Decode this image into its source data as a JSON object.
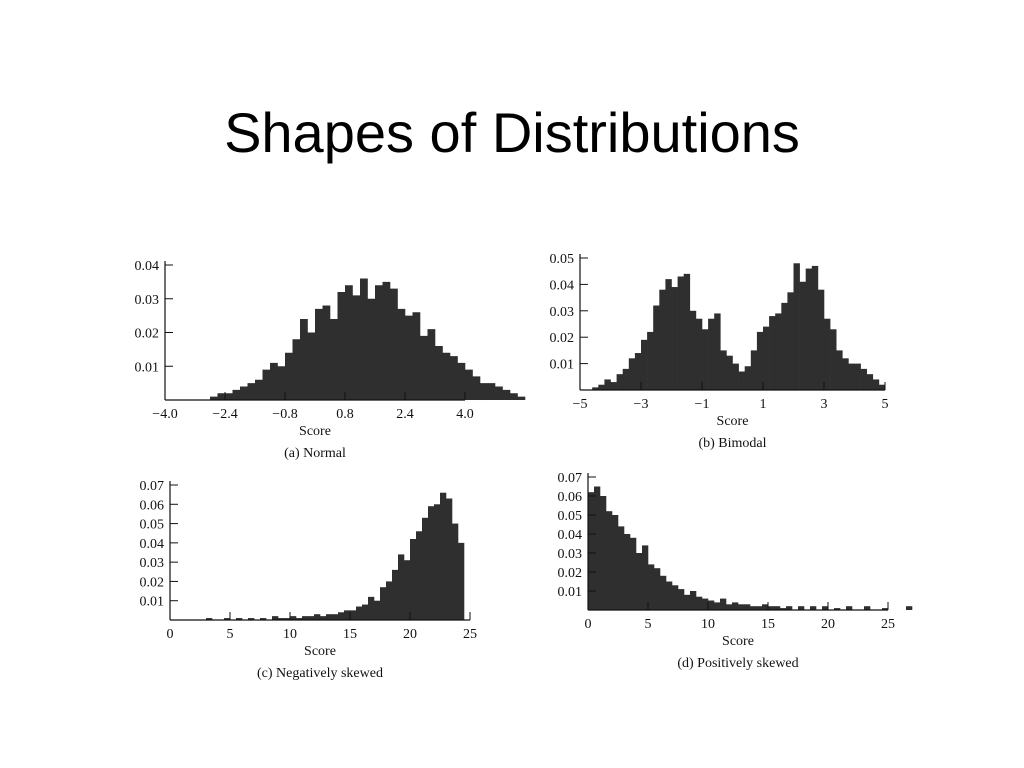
{
  "slide": {
    "title": "Shapes of Distributions"
  },
  "colors": {
    "bar": "#2f2f2f",
    "axis": "#111111",
    "text": "#111111"
  },
  "chart_data": [
    {
      "type": "bar",
      "caption": "(a) Normal",
      "xlabel": "Score",
      "ylabel": "",
      "xlim": [
        -4.0,
        4.0
      ],
      "ylim": [
        0,
        0.04
      ],
      "x_ticks": [
        "−4.0",
        "−2.4",
        "−0.8",
        "0.8",
        "2.4",
        "4.0"
      ],
      "x_tick_values": [
        -4.0,
        -2.4,
        -0.8,
        0.8,
        2.4,
        4.0
      ],
      "y_ticks": [
        "0.01",
        "0.02",
        "0.03",
        "0.04"
      ],
      "y_tick_values": [
        0.01,
        0.02,
        0.03,
        0.04
      ],
      "bin_start": -2.8,
      "bin_width": 0.2,
      "values": [
        0.001,
        0.002,
        0.002,
        0.003,
        0.004,
        0.005,
        0.006,
        0.009,
        0.011,
        0.01,
        0.014,
        0.018,
        0.024,
        0.02,
        0.027,
        0.028,
        0.024,
        0.032,
        0.034,
        0.031,
        0.036,
        0.03,
        0.034,
        0.035,
        0.033,
        0.027,
        0.025,
        0.026,
        0.019,
        0.021,
        0.016,
        0.014,
        0.013,
        0.011,
        0.009,
        0.007,
        0.005,
        0.005,
        0.004,
        0.003,
        0.002,
        0.001
      ]
    },
    {
      "type": "bar",
      "caption": "(b) Bimodal",
      "xlabel": "Score",
      "ylabel": "",
      "xlim": [
        -5,
        5
      ],
      "ylim": [
        0,
        0.05
      ],
      "x_ticks": [
        "−5",
        "−3",
        "−1",
        "1",
        "3",
        "5"
      ],
      "x_tick_values": [
        -5,
        -3,
        -1,
        1,
        3,
        5
      ],
      "y_ticks": [
        "0.01",
        "0.02",
        "0.03",
        "0.04",
        "0.05"
      ],
      "y_tick_values": [
        0.01,
        0.02,
        0.03,
        0.04,
        0.05
      ],
      "bin_start": -4.6,
      "bin_width": 0.2,
      "values": [
        0.001,
        0.002,
        0.004,
        0.003,
        0.006,
        0.008,
        0.012,
        0.014,
        0.019,
        0.022,
        0.032,
        0.038,
        0.042,
        0.039,
        0.043,
        0.044,
        0.03,
        0.027,
        0.023,
        0.027,
        0.029,
        0.015,
        0.013,
        0.01,
        0.007,
        0.009,
        0.015,
        0.022,
        0.024,
        0.028,
        0.029,
        0.033,
        0.037,
        0.048,
        0.041,
        0.046,
        0.047,
        0.038,
        0.027,
        0.023,
        0.015,
        0.012,
        0.01,
        0.01,
        0.008,
        0.006,
        0.004,
        0.002
      ]
    },
    {
      "type": "bar",
      "caption": "(c) Negatively skewed",
      "xlabel": "Score",
      "ylabel": "",
      "xlim": [
        0,
        25
      ],
      "ylim": [
        0,
        0.07
      ],
      "x_ticks": [
        "0",
        "5",
        "10",
        "15",
        "20",
        "25"
      ],
      "x_tick_values": [
        0,
        5,
        10,
        15,
        20,
        25
      ],
      "y_ticks": [
        "0.01",
        "0.02",
        "0.03",
        "0.04",
        "0.05",
        "0.06",
        "0.07"
      ],
      "y_tick_values": [
        0.01,
        0.02,
        0.03,
        0.04,
        0.05,
        0.06,
        0.07
      ],
      "bin_start": 3.0,
      "bin_width": 0.5,
      "values": [
        0.001,
        0,
        0,
        0.001,
        0,
        0.001,
        0,
        0.001,
        0,
        0.001,
        0,
        0.002,
        0.001,
        0.001,
        0.002,
        0.001,
        0.002,
        0.002,
        0.003,
        0.002,
        0.003,
        0.003,
        0.004,
        0.005,
        0.005,
        0.007,
        0.008,
        0.012,
        0.01,
        0.017,
        0.02,
        0.026,
        0.034,
        0.031,
        0.042,
        0.046,
        0.053,
        0.059,
        0.06,
        0.066,
        0.063,
        0.05,
        0.04
      ]
    },
    {
      "type": "bar",
      "caption": "(d) Positively skewed",
      "xlabel": "Score",
      "ylabel": "",
      "xlim": [
        0,
        25
      ],
      "ylim": [
        0,
        0.07
      ],
      "x_ticks": [
        "0",
        "5",
        "10",
        "15",
        "20",
        "25"
      ],
      "x_tick_values": [
        0,
        5,
        10,
        15,
        20,
        25
      ],
      "y_ticks": [
        "0.01",
        "0.02",
        "0.03",
        "0.04",
        "0.05",
        "0.06",
        "0.07"
      ],
      "y_tick_values": [
        0.01,
        0.02,
        0.03,
        0.04,
        0.05,
        0.06,
        0.07
      ],
      "bin_start": 0.0,
      "bin_width": 0.5,
      "values": [
        0.062,
        0.065,
        0.06,
        0.052,
        0.05,
        0.044,
        0.04,
        0.038,
        0.03,
        0.034,
        0.024,
        0.022,
        0.018,
        0.015,
        0.013,
        0.011,
        0.008,
        0.01,
        0.007,
        0.006,
        0.005,
        0.004,
        0.006,
        0.003,
        0.004,
        0.003,
        0.003,
        0.002,
        0.002,
        0.003,
        0.002,
        0.002,
        0.001,
        0.002,
        0,
        0.002,
        0,
        0.002,
        0,
        0.002,
        0,
        0.001,
        0,
        0.002,
        0,
        0,
        0.002,
        0,
        0,
        0.001,
        0,
        0,
        0,
        0.002,
        0,
        0,
        0,
        0.002,
        0,
        0,
        0,
        0,
        0,
        0,
        0.002
      ]
    }
  ]
}
